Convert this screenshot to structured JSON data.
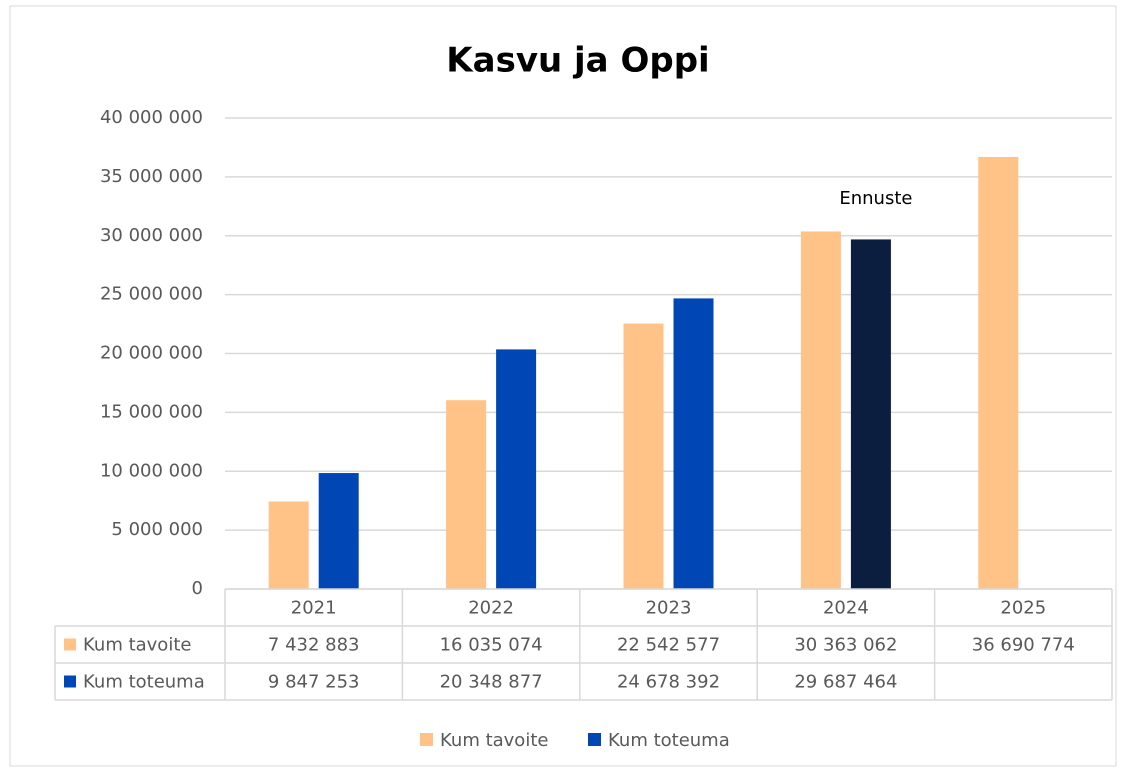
{
  "chart_data": {
    "type": "bar",
    "title": "Kasvu ja Oppi",
    "categories": [
      "2021",
      "2022",
      "2023",
      "2024",
      "2025"
    ],
    "series": [
      {
        "name": "Kum tavoite",
        "color": "#ffc287",
        "values": [
          7432883,
          16035074,
          22542577,
          30363062,
          36690774
        ],
        "value_labels": [
          "7 432 883",
          "16 035 074",
          "22 542 577",
          "30 363 062",
          "36 690 774"
        ]
      },
      {
        "name": "Kum toteuma",
        "color": "#0047b6",
        "point_colors": [
          "#0047b6",
          "#0047b6",
          "#0047b6",
          "#0b1e3f",
          "#0047b6"
        ],
        "values": [
          9847253,
          20348877,
          24678392,
          29687464,
          null
        ],
        "value_labels": [
          "9 847 253",
          "20 348 877",
          "24 678 392",
          "29 687 464",
          null
        ]
      }
    ],
    "annotations": [
      {
        "text": "Ennuste",
        "category": "2024"
      }
    ],
    "ylim": [
      0,
      40000000
    ],
    "yticks": [
      0,
      {
        "value": 5000000,
        "label": "5 000 000"
      },
      {
        "value": 10000000,
        "label": "10 000 000"
      },
      {
        "value": 15000000,
        "label": "15 000 000"
      },
      {
        "value": 20000000,
        "label": "20 000 000"
      },
      {
        "value": 25000000,
        "label": "25 000 000"
      },
      {
        "value": 30000000,
        "label": "30 000 000"
      },
      {
        "value": 35000000,
        "label": "35 000 000"
      },
      {
        "value": 40000000,
        "label": "40 000 000"
      }
    ],
    "grid": true,
    "legend": "bottom",
    "data_table": true
  }
}
